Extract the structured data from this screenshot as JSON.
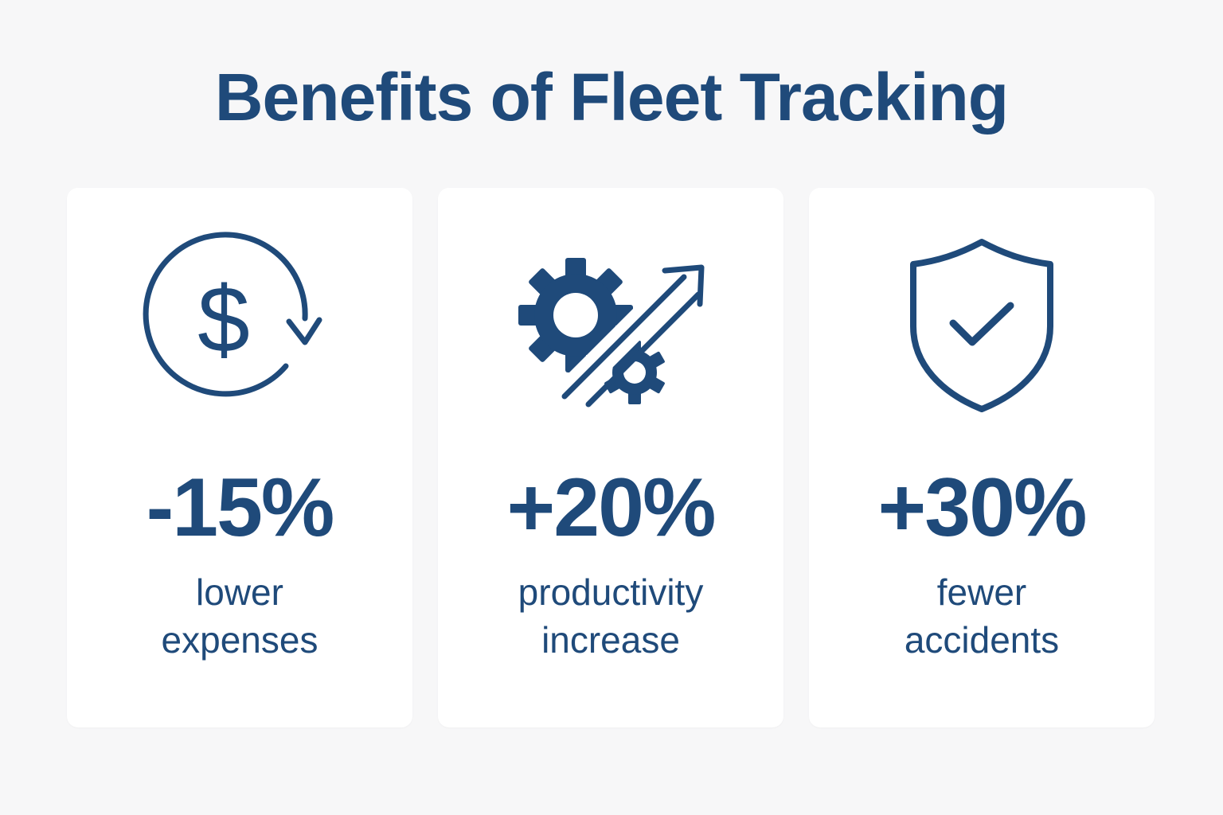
{
  "title": "Benefits of Fleet Tracking",
  "accent_color": "#1f4a7a",
  "cards": [
    {
      "icon": "dollar-refresh-icon",
      "value": "-15%",
      "label_line1": "lower",
      "label_line2": "expenses"
    },
    {
      "icon": "gear-growth-icon",
      "value": "+20%",
      "label_line1": "productivity",
      "label_line2": "increase"
    },
    {
      "icon": "shield-check-icon",
      "value": "+30%",
      "label_line1": "fewer",
      "label_line2": "accidents"
    }
  ]
}
